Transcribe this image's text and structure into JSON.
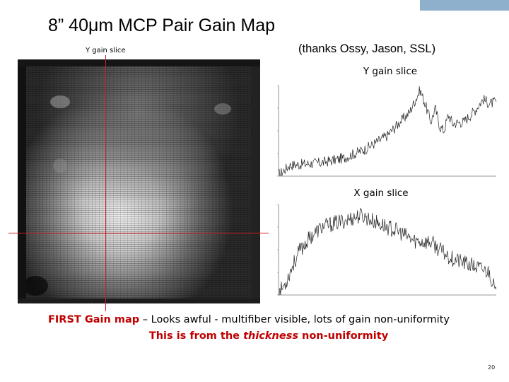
{
  "slide": {
    "title": "8” 40μm MCP Pair Gain Map",
    "credit": "(thanks Ossy, Jason, SSL)",
    "left_caption": "Y gain slice",
    "y_slice_label": "Y gain slice",
    "x_slice_label": "X gain slice",
    "footer": {
      "lead_red": "FIRST Gain map",
      "lead_rest": " – Looks awful - multifiber visible, lots of gain non-uniformity",
      "line2_before": "This is from the ",
      "line2_italic": "thickness",
      "line2_after": " non-uniformity"
    },
    "page_number": "20"
  },
  "colors": {
    "accent_bar": "#8fb0cc",
    "crosshair": "#d12020",
    "emphasis": "#c00000"
  },
  "chart_data": [
    {
      "type": "line",
      "title": "Y gain slice",
      "xlabel": "",
      "ylabel": "",
      "xlim": [
        0,
        1
      ],
      "ylim": [
        0,
        1
      ],
      "grid": false,
      "control_points": [
        [
          0.0,
          0.02
        ],
        [
          0.02,
          0.05
        ],
        [
          0.05,
          0.12
        ],
        [
          0.1,
          0.13
        ],
        [
          0.2,
          0.15
        ],
        [
          0.3,
          0.2
        ],
        [
          0.4,
          0.3
        ],
        [
          0.5,
          0.45
        ],
        [
          0.55,
          0.58
        ],
        [
          0.6,
          0.7
        ],
        [
          0.63,
          0.85
        ],
        [
          0.65,
          0.95
        ],
        [
          0.67,
          0.82
        ],
        [
          0.7,
          0.6
        ],
        [
          0.72,
          0.75
        ],
        [
          0.74,
          0.55
        ],
        [
          0.76,
          0.5
        ],
        [
          0.78,
          0.68
        ],
        [
          0.8,
          0.58
        ],
        [
          0.85,
          0.6
        ],
        [
          0.9,
          0.72
        ],
        [
          0.94,
          0.85
        ],
        [
          0.97,
          0.8
        ],
        [
          1.0,
          0.82
        ]
      ],
      "noise": 0.06
    },
    {
      "type": "line",
      "title": "X gain slice",
      "xlabel": "",
      "ylabel": "",
      "xlim": [
        0,
        1
      ],
      "ylim": [
        0,
        1
      ],
      "grid": false,
      "control_points": [
        [
          0.0,
          0.02
        ],
        [
          0.03,
          0.12
        ],
        [
          0.06,
          0.3
        ],
        [
          0.1,
          0.5
        ],
        [
          0.15,
          0.65
        ],
        [
          0.2,
          0.75
        ],
        [
          0.3,
          0.82
        ],
        [
          0.38,
          0.88
        ],
        [
          0.45,
          0.8
        ],
        [
          0.55,
          0.7
        ],
        [
          0.62,
          0.6
        ],
        [
          0.7,
          0.58
        ],
        [
          0.75,
          0.48
        ],
        [
          0.8,
          0.4
        ],
        [
          0.88,
          0.33
        ],
        [
          0.94,
          0.28
        ],
        [
          0.97,
          0.25
        ],
        [
          0.985,
          0.12
        ],
        [
          1.0,
          0.0
        ]
      ],
      "noise": 0.09
    }
  ]
}
